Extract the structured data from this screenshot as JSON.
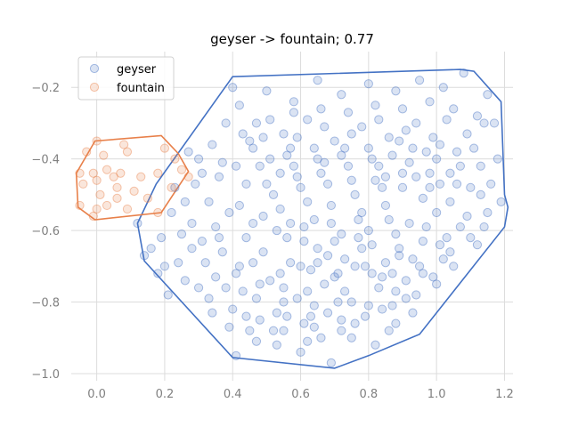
{
  "chart_data": {
    "type": "scatter",
    "title": "geyser -> fountain; 0.77",
    "xlabel": "",
    "ylabel": "",
    "xlim": [
      -0.075,
      1.225
    ],
    "ylim": [
      -1.02,
      -0.1
    ],
    "grid": true,
    "legend_position": "top-left",
    "x_ticks": [
      0.0,
      0.2,
      0.4,
      0.6,
      0.8,
      1.0,
      1.2
    ],
    "x_tick_labels": [
      "0.0",
      "0.2",
      "0.4",
      "0.6",
      "0.8",
      "1.0",
      "1.2"
    ],
    "y_ticks": [
      -0.2,
      -0.4,
      -0.6,
      -0.8,
      -1.0
    ],
    "y_tick_labels": [
      "−0.2",
      "−0.4",
      "−0.6",
      "−0.8",
      "−1.0"
    ],
    "series": [
      {
        "name": "geyser",
        "color": "#4472c4",
        "marker_alpha": 0.2,
        "hull": [
          [
            0.4,
            -0.17
          ],
          [
            1.07,
            -0.15
          ],
          [
            1.11,
            -0.155
          ],
          [
            1.19,
            -0.24
          ],
          [
            1.2,
            -0.5
          ],
          [
            1.21,
            -0.535
          ],
          [
            1.2,
            -0.59
          ],
          [
            0.95,
            -0.89
          ],
          [
            0.8,
            -0.95
          ],
          [
            0.7,
            -0.985
          ],
          [
            0.4,
            -0.955
          ],
          [
            0.14,
            -0.685
          ],
          [
            0.12,
            -0.58
          ],
          [
            0.175,
            -0.47
          ]
        ],
        "points": [
          [
            0.27,
            -0.38
          ],
          [
            0.34,
            -0.36
          ],
          [
            0.12,
            -0.58
          ],
          [
            0.28,
            -0.58
          ],
          [
            0.14,
            -0.67
          ],
          [
            0.18,
            -0.72
          ],
          [
            0.26,
            -0.74
          ],
          [
            0.21,
            -0.78
          ],
          [
            0.22,
            -0.55
          ],
          [
            0.31,
            -0.63
          ],
          [
            0.33,
            -0.52
          ],
          [
            0.19,
            -0.62
          ],
          [
            0.24,
            -0.69
          ],
          [
            0.36,
            -0.45
          ],
          [
            0.3,
            -0.4
          ],
          [
            0.38,
            -0.3
          ],
          [
            0.4,
            -0.2
          ],
          [
            0.42,
            -0.25
          ],
          [
            0.45,
            -0.35
          ],
          [
            0.41,
            -0.95
          ],
          [
            0.48,
            -0.85
          ],
          [
            0.55,
            -0.88
          ],
          [
            0.62,
            -0.91
          ],
          [
            0.69,
            -0.97
          ],
          [
            0.75,
            -0.9
          ],
          [
            0.82,
            -0.92
          ],
          [
            0.88,
            -0.86
          ],
          [
            0.93,
            -0.83
          ],
          [
            1.0,
            -0.75
          ],
          [
            1.05,
            -0.7
          ],
          [
            1.1,
            -0.62
          ],
          [
            1.15,
            -0.55
          ],
          [
            1.19,
            -0.52
          ],
          [
            1.18,
            -0.4
          ],
          [
            1.17,
            -0.3
          ],
          [
            1.15,
            -0.22
          ],
          [
            1.08,
            -0.16
          ],
          [
            1.02,
            -0.2
          ],
          [
            0.95,
            -0.18
          ],
          [
            0.88,
            -0.21
          ],
          [
            0.8,
            -0.19
          ],
          [
            0.72,
            -0.22
          ],
          [
            0.65,
            -0.18
          ],
          [
            0.58,
            -0.24
          ],
          [
            0.5,
            -0.21
          ],
          [
            0.47,
            -0.3
          ],
          [
            0.55,
            -0.33
          ],
          [
            0.62,
            -0.29
          ],
          [
            0.7,
            -0.35
          ],
          [
            0.78,
            -0.31
          ],
          [
            0.86,
            -0.34
          ],
          [
            0.94,
            -0.3
          ],
          [
            1.01,
            -0.36
          ],
          [
            1.09,
            -0.33
          ],
          [
            1.13,
            -0.42
          ],
          [
            1.06,
            -0.47
          ],
          [
            0.98,
            -0.44
          ],
          [
            0.9,
            -0.48
          ],
          [
            0.83,
            -0.42
          ],
          [
            0.75,
            -0.46
          ],
          [
            0.67,
            -0.41
          ],
          [
            0.59,
            -0.45
          ],
          [
            0.51,
            -0.4
          ],
          [
            0.44,
            -0.47
          ],
          [
            0.39,
            -0.55
          ],
          [
            0.46,
            -0.58
          ],
          [
            0.54,
            -0.54
          ],
          [
            0.61,
            -0.59
          ],
          [
            0.69,
            -0.53
          ],
          [
            0.77,
            -0.57
          ],
          [
            0.85,
            -0.53
          ],
          [
            0.92,
            -0.58
          ],
          [
            1.0,
            -0.55
          ],
          [
            1.07,
            -0.59
          ],
          [
            1.12,
            -0.64
          ],
          [
            1.04,
            -0.66
          ],
          [
            0.96,
            -0.63
          ],
          [
            0.89,
            -0.67
          ],
          [
            0.81,
            -0.64
          ],
          [
            0.73,
            -0.68
          ],
          [
            0.65,
            -0.65
          ],
          [
            0.57,
            -0.69
          ],
          [
            0.49,
            -0.66
          ],
          [
            0.42,
            -0.7
          ],
          [
            0.35,
            -0.73
          ],
          [
            0.43,
            -0.77
          ],
          [
            0.51,
            -0.74
          ],
          [
            0.59,
            -0.79
          ],
          [
            0.67,
            -0.75
          ],
          [
            0.75,
            -0.8
          ],
          [
            0.83,
            -0.76
          ],
          [
            0.91,
            -0.79
          ],
          [
            0.99,
            -0.73
          ],
          [
            0.95,
            -0.7
          ],
          [
            0.87,
            -0.72
          ],
          [
            0.79,
            -0.7
          ],
          [
            0.71,
            -0.72
          ],
          [
            0.63,
            -0.71
          ],
          [
            0.55,
            -0.76
          ],
          [
            0.47,
            -0.79
          ],
          [
            0.4,
            -0.82
          ],
          [
            0.45,
            -0.88
          ],
          [
            0.53,
            -0.83
          ],
          [
            0.61,
            -0.86
          ],
          [
            0.68,
            -0.83
          ],
          [
            0.76,
            -0.86
          ],
          [
            0.84,
            -0.82
          ],
          [
            0.72,
            -0.88
          ],
          [
            0.64,
            -0.81
          ],
          [
            0.56,
            -0.62
          ],
          [
            0.64,
            -0.57
          ],
          [
            0.72,
            -0.61
          ],
          [
            0.8,
            -0.6
          ],
          [
            0.88,
            -0.61
          ],
          [
            0.96,
            -0.51
          ],
          [
            1.04,
            -0.52
          ],
          [
            1.1,
            -0.48
          ],
          [
            0.52,
            -0.5
          ],
          [
            0.6,
            -0.48
          ],
          [
            0.68,
            -0.47
          ],
          [
            0.76,
            -0.5
          ],
          [
            0.84,
            -0.48
          ],
          [
            0.92,
            -0.41
          ],
          [
            1.0,
            -0.4
          ],
          [
            1.06,
            -0.38
          ],
          [
            0.48,
            -0.42
          ],
          [
            0.56,
            -0.39
          ],
          [
            0.64,
            -0.37
          ],
          [
            0.72,
            -0.39
          ],
          [
            0.8,
            -0.37
          ],
          [
            0.87,
            -0.39
          ],
          [
            0.58,
            -0.27
          ],
          [
            0.66,
            -0.26
          ],
          [
            0.74,
            -0.27
          ],
          [
            0.82,
            -0.25
          ],
          [
            0.9,
            -0.26
          ],
          [
            0.98,
            -0.24
          ],
          [
            1.05,
            -0.26
          ],
          [
            1.12,
            -0.28
          ],
          [
            0.44,
            -0.62
          ],
          [
            0.37,
            -0.66
          ],
          [
            0.32,
            -0.69
          ],
          [
            0.28,
            -0.65
          ],
          [
            0.25,
            -0.61
          ],
          [
            0.23,
            -0.48
          ],
          [
            0.29,
            -0.47
          ],
          [
            0.35,
            -0.59
          ],
          [
            0.16,
            -0.65
          ],
          [
            0.2,
            -0.7
          ],
          [
            0.53,
            -0.92
          ],
          [
            0.6,
            -0.94
          ],
          [
            0.66,
            -0.9
          ],
          [
            0.86,
            -0.88
          ],
          [
            0.91,
            -0.74
          ],
          [
            1.03,
            -0.62
          ],
          [
            1.14,
            -0.59
          ],
          [
            1.16,
            -0.47
          ],
          [
            1.11,
            -0.37
          ],
          [
            1.14,
            -0.3
          ],
          [
            1.03,
            -0.29
          ],
          [
            0.93,
            -0.37
          ],
          [
            0.85,
            -0.45
          ],
          [
            0.78,
            -0.55
          ],
          [
            0.7,
            -0.63
          ],
          [
            0.62,
            -0.52
          ],
          [
            0.54,
            -0.44
          ],
          [
            0.46,
            -0.37
          ],
          [
            0.41,
            -0.42
          ],
          [
            0.49,
            -0.56
          ],
          [
            0.57,
            -0.58
          ],
          [
            0.65,
            -0.69
          ],
          [
            0.73,
            -0.77
          ],
          [
            0.81,
            -0.72
          ],
          [
            0.89,
            -0.65
          ],
          [
            0.97,
            -0.59
          ],
          [
            1.01,
            -0.47
          ],
          [
            0.94,
            -0.45
          ],
          [
            0.86,
            -0.57
          ],
          [
            0.78,
            -0.65
          ],
          [
            0.7,
            -0.73
          ],
          [
            0.62,
            -0.77
          ],
          [
            0.54,
            -0.72
          ],
          [
            0.46,
            -0.69
          ],
          [
            0.38,
            -0.76
          ],
          [
            0.33,
            -0.79
          ],
          [
            0.26,
            -0.52
          ],
          [
            0.31,
            -0.44
          ],
          [
            0.37,
            -0.41
          ],
          [
            0.43,
            -0.33
          ],
          [
            0.51,
            -0.29
          ],
          [
            0.59,
            -0.34
          ],
          [
            0.67,
            -0.31
          ],
          [
            0.75,
            -0.33
          ],
          [
            0.83,
            -0.29
          ],
          [
            0.91,
            -0.32
          ],
          [
            0.99,
            -0.34
          ],
          [
            1.07,
            -0.42
          ],
          [
            1.13,
            -0.5
          ],
          [
            1.09,
            -0.56
          ],
          [
            1.02,
            -0.68
          ],
          [
            0.94,
            -0.78
          ],
          [
            0.87,
            -0.81
          ],
          [
            0.79,
            -0.84
          ],
          [
            0.71,
            -0.8
          ],
          [
            0.63,
            -0.84
          ],
          [
            0.55,
            -0.8
          ],
          [
            0.48,
            -0.75
          ],
          [
            0.41,
            -0.72
          ],
          [
            0.36,
            -0.62
          ],
          [
            0.42,
            -0.53
          ],
          [
            0.5,
            -0.47
          ],
          [
            0.58,
            -0.42
          ],
          [
            0.66,
            -0.44
          ],
          [
            0.74,
            -0.42
          ],
          [
            0.82,
            -0.46
          ],
          [
            0.9,
            -0.44
          ],
          [
            0.98,
            -0.48
          ],
          [
            1.04,
            -0.44
          ],
          [
            0.97,
            -0.38
          ],
          [
            0.89,
            -0.35
          ],
          [
            0.81,
            -0.4
          ],
          [
            0.73,
            -0.37
          ],
          [
            0.65,
            -0.4
          ],
          [
            0.57,
            -0.37
          ],
          [
            0.49,
            -0.34
          ],
          [
            0.53,
            -0.6
          ],
          [
            0.61,
            -0.63
          ],
          [
            0.69,
            -0.58
          ],
          [
            0.77,
            -0.62
          ],
          [
            0.85,
            -0.69
          ],
          [
            0.93,
            -0.68
          ],
          [
            1.01,
            -0.64
          ],
          [
            0.6,
            -0.7
          ],
          [
            0.68,
            -0.67
          ],
          [
            0.76,
            -0.7
          ],
          [
            0.84,
            -0.73
          ],
          [
            0.56,
            -0.84
          ],
          [
            0.64,
            -0.87
          ],
          [
            0.72,
            -0.85
          ],
          [
            0.8,
            -0.81
          ],
          [
            0.88,
            -0.77
          ],
          [
            0.96,
            -0.72
          ],
          [
            0.44,
            -0.84
          ],
          [
            0.52,
            -0.88
          ],
          [
            0.47,
            -0.91
          ],
          [
            0.39,
            -0.87
          ],
          [
            0.34,
            -0.83
          ],
          [
            0.3,
            -0.76
          ]
        ]
      },
      {
        "name": "fountain",
        "color": "#e8804a",
        "marker_alpha": 0.2,
        "hull": [
          [
            -0.005,
            -0.35
          ],
          [
            0.19,
            -0.335
          ],
          [
            0.24,
            -0.385
          ],
          [
            0.27,
            -0.435
          ],
          [
            0.19,
            -0.55
          ],
          [
            -0.005,
            -0.57
          ],
          [
            -0.055,
            -0.535
          ],
          [
            -0.06,
            -0.44
          ]
        ],
        "points": [
          [
            -0.05,
            -0.44
          ],
          [
            -0.04,
            -0.47
          ],
          [
            -0.05,
            -0.53
          ],
          [
            -0.03,
            -0.38
          ],
          [
            0.0,
            -0.35
          ],
          [
            0.02,
            -0.39
          ],
          [
            0.03,
            -0.43
          ],
          [
            -0.01,
            -0.44
          ],
          [
            0.0,
            -0.46
          ],
          [
            0.05,
            -0.45
          ],
          [
            0.06,
            -0.48
          ],
          [
            0.07,
            -0.44
          ],
          [
            0.09,
            -0.38
          ],
          [
            0.08,
            -0.36
          ],
          [
            0.06,
            -0.51
          ],
          [
            0.01,
            -0.5
          ],
          [
            0.03,
            -0.53
          ],
          [
            0.09,
            -0.54
          ],
          [
            0.13,
            -0.45
          ],
          [
            0.15,
            -0.51
          ],
          [
            0.18,
            -0.55
          ],
          [
            0.18,
            -0.44
          ],
          [
            0.2,
            -0.37
          ],
          [
            0.23,
            -0.4
          ],
          [
            0.25,
            -0.43
          ],
          [
            0.27,
            -0.45
          ],
          [
            0.22,
            -0.48
          ],
          [
            0.11,
            -0.49
          ],
          [
            -0.01,
            -0.56
          ],
          [
            0.0,
            -0.54
          ]
        ]
      }
    ]
  }
}
